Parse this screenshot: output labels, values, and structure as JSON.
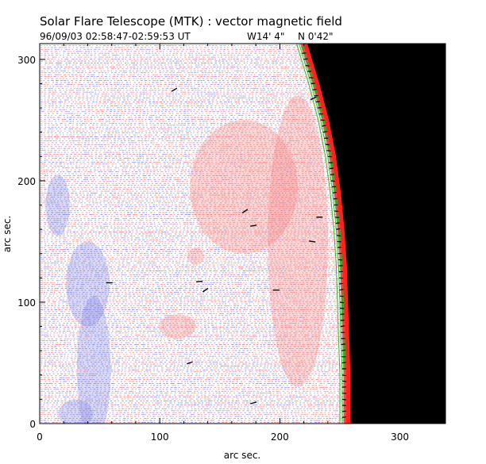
{
  "chart_data": {
    "type": "vector-magnetogram",
    "title": "Solar Flare Telescope (MTK) : vector magnetic field",
    "subtitle": {
      "date_time": "96/09/03  02:58:47-02:59:53 UT",
      "longitude": "W14' 4\"",
      "latitude": "N 0'42\""
    },
    "xlabel": "arc sec.",
    "ylabel": "arc sec.",
    "xlim": [
      0,
      338
    ],
    "ylim": [
      0,
      313
    ],
    "x_ticks": [
      0,
      100,
      200,
      300
    ],
    "y_ticks": [
      0,
      100,
      200,
      300
    ],
    "x_tick_labels": [
      "0",
      "100",
      "200",
      "300"
    ],
    "y_tick_labels": [
      "0",
      "100",
      "200",
      "300"
    ],
    "limb": {
      "description": "solar limb; area beyond is dark sky",
      "x_at_y": [
        [
          222,
          313
        ],
        [
          232,
          280
        ],
        [
          240,
          250
        ],
        [
          246,
          220
        ],
        [
          250,
          190
        ],
        [
          253,
          160
        ],
        [
          255,
          130
        ],
        [
          256,
          100
        ],
        [
          257,
          70
        ],
        [
          258,
          40
        ],
        [
          258,
          0
        ]
      ],
      "sky_color": "#000000",
      "limb_color": "#ff2020",
      "contour_color": "#33bb33"
    },
    "field_colors": {
      "positive_polarity": "#f07070",
      "negative_polarity": "#7777dd"
    },
    "polarity_regions": [
      {
        "polarity": "negative",
        "x": 15,
        "y": 180,
        "rx": 10,
        "ry": 25
      },
      {
        "polarity": "negative",
        "x": 40,
        "y": 115,
        "rx": 18,
        "ry": 35
      },
      {
        "polarity": "negative",
        "x": 45,
        "y": 45,
        "rx": 14,
        "ry": 60
      },
      {
        "polarity": "negative",
        "x": 30,
        "y": 8,
        "rx": 14,
        "ry": 12
      },
      {
        "polarity": "positive",
        "x": 130,
        "y": 138,
        "rx": 7,
        "ry": 7
      },
      {
        "polarity": "positive",
        "x": 115,
        "y": 80,
        "rx": 15,
        "ry": 10
      },
      {
        "polarity": "positive",
        "x": 170,
        "y": 195,
        "rx": 45,
        "ry": 55
      },
      {
        "polarity": "positive",
        "x": 215,
        "y": 150,
        "rx": 25,
        "ry": 120
      }
    ],
    "transverse_vectors": [
      {
        "x": 112,
        "y": 275,
        "angle": 30
      },
      {
        "x": 171,
        "y": 175,
        "angle": 35
      },
      {
        "x": 178,
        "y": 163,
        "angle": 10
      },
      {
        "x": 227,
        "y": 150,
        "angle": -10
      },
      {
        "x": 58,
        "y": 116,
        "angle": 0
      },
      {
        "x": 133,
        "y": 117,
        "angle": 5
      },
      {
        "x": 138,
        "y": 110,
        "angle": 35
      },
      {
        "x": 197,
        "y": 110,
        "angle": 0
      },
      {
        "x": 125,
        "y": 50,
        "angle": 20
      },
      {
        "x": 178,
        "y": 17,
        "angle": 15
      },
      {
        "x": 230,
        "y": 298,
        "angle": 20
      },
      {
        "x": 228,
        "y": 268,
        "angle": 25
      },
      {
        "x": 233,
        "y": 170,
        "angle": 0
      }
    ]
  }
}
